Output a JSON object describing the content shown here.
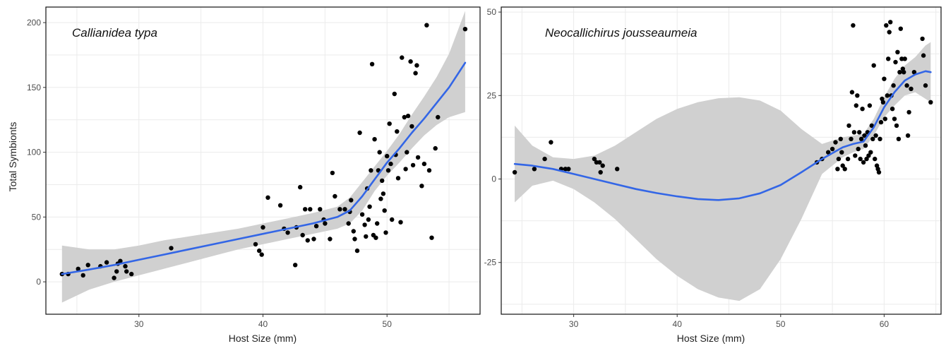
{
  "colors": {
    "points": "#000000",
    "smooth_line": "#3366e6",
    "ci_band": "#d0d0d0"
  },
  "y_axis_title": "Total Symbionts",
  "chart_data": [
    {
      "type": "scatter",
      "title": "Callianidea typa",
      "xlabel": "Host Size (mm)",
      "ylabel": "Total Symbionts",
      "xlim": [
        22.5,
        57.5
      ],
      "ylim": [
        -25,
        212
      ],
      "x_ticks": [
        30,
        40,
        50
      ],
      "y_ticks": [
        0,
        50,
        100,
        150,
        200
      ],
      "grid": true,
      "points": [
        [
          23.8,
          6
        ],
        [
          24.3,
          6
        ],
        [
          25.1,
          10
        ],
        [
          25.5,
          5
        ],
        [
          25.9,
          13
        ],
        [
          26.9,
          12
        ],
        [
          27.4,
          15
        ],
        [
          28.0,
          3
        ],
        [
          28.2,
          8
        ],
        [
          28.3,
          14
        ],
        [
          28.5,
          16
        ],
        [
          28.9,
          12
        ],
        [
          29.0,
          8
        ],
        [
          29.4,
          6
        ],
        [
          32.6,
          26
        ],
        [
          39.4,
          29
        ],
        [
          39.7,
          24
        ],
        [
          39.9,
          21
        ],
        [
          40.0,
          42
        ],
        [
          40.4,
          65
        ],
        [
          41.4,
          59
        ],
        [
          41.7,
          41
        ],
        [
          42.0,
          38
        ],
        [
          42.6,
          13
        ],
        [
          42.7,
          42
        ],
        [
          43.0,
          73
        ],
        [
          43.2,
          36
        ],
        [
          43.4,
          56
        ],
        [
          43.6,
          32
        ],
        [
          43.8,
          56
        ],
        [
          44.1,
          33
        ],
        [
          44.3,
          43
        ],
        [
          44.6,
          56
        ],
        [
          44.9,
          48
        ],
        [
          45.0,
          45
        ],
        [
          45.4,
          33
        ],
        [
          45.6,
          84
        ],
        [
          45.8,
          66
        ],
        [
          46.2,
          56
        ],
        [
          46.6,
          56
        ],
        [
          46.9,
          45
        ],
        [
          47.0,
          54
        ],
        [
          47.1,
          63
        ],
        [
          47.3,
          39
        ],
        [
          47.4,
          33
        ],
        [
          47.6,
          24
        ],
        [
          47.8,
          115
        ],
        [
          48.0,
          52
        ],
        [
          48.2,
          44
        ],
        [
          48.3,
          35
        ],
        [
          48.4,
          72
        ],
        [
          48.5,
          48
        ],
        [
          48.6,
          58
        ],
        [
          48.7,
          86
        ],
        [
          48.8,
          168
        ],
        [
          48.9,
          36
        ],
        [
          49.0,
          110
        ],
        [
          49.1,
          34
        ],
        [
          49.2,
          45
        ],
        [
          49.3,
          86
        ],
        [
          49.4,
          100
        ],
        [
          49.5,
          64
        ],
        [
          49.6,
          78
        ],
        [
          49.7,
          68
        ],
        [
          49.8,
          55
        ],
        [
          49.9,
          38
        ],
        [
          50.0,
          97
        ],
        [
          50.1,
          86
        ],
        [
          50.2,
          122
        ],
        [
          50.3,
          91
        ],
        [
          50.4,
          48
        ],
        [
          50.6,
          145
        ],
        [
          50.7,
          98
        ],
        [
          50.8,
          116
        ],
        [
          50.9,
          80
        ],
        [
          51.1,
          46
        ],
        [
          51.2,
          173
        ],
        [
          51.4,
          127
        ],
        [
          51.5,
          87
        ],
        [
          51.6,
          100
        ],
        [
          51.7,
          128
        ],
        [
          51.9,
          170
        ],
        [
          52.0,
          120
        ],
        [
          52.1,
          90
        ],
        [
          52.3,
          161
        ],
        [
          52.4,
          167
        ],
        [
          52.5,
          96
        ],
        [
          52.8,
          74
        ],
        [
          53.0,
          91
        ],
        [
          53.2,
          198
        ],
        [
          53.4,
          86
        ],
        [
          53.6,
          34
        ],
        [
          53.9,
          103
        ],
        [
          54.1,
          127
        ],
        [
          56.3,
          195
        ]
      ],
      "smooth": {
        "x": [
          23.8,
          26,
          28,
          30,
          32,
          34,
          36,
          38,
          40,
          42,
          44,
          46,
          47,
          48,
          49,
          50,
          51,
          52,
          53,
          54,
          55,
          56.3
        ],
        "y": [
          6,
          9.5,
          13,
          17,
          21,
          25,
          29,
          33,
          37,
          41,
          45,
          50,
          55,
          66,
          79,
          92,
          103,
          115,
          126,
          138,
          150,
          169
        ],
        "lower": [
          -16,
          -6,
          0,
          5,
          10,
          15,
          20,
          25,
          29,
          33,
          37,
          41,
          45,
          55,
          70,
          82,
          92,
          103,
          113,
          121,
          127,
          131
        ],
        "upper": [
          28,
          25,
          25,
          28,
          32,
          35,
          38,
          41,
          45,
          49,
          53,
          58,
          65,
          77,
          89,
          101,
          114,
          129,
          143,
          158,
          176,
          209
        ]
      }
    },
    {
      "type": "scatter",
      "title": "Neocallichirus jousseaumeia",
      "xlabel": "Host Size (mm)",
      "ylabel": "",
      "xlim": [
        23,
        65.5
      ],
      "ylim": [
        -40.5,
        51.5
      ],
      "x_ticks": [
        30,
        40,
        50,
        60
      ],
      "y_ticks": [
        -25,
        0,
        25,
        50
      ],
      "grid": true,
      "points": [
        [
          24.3,
          2
        ],
        [
          26.2,
          3
        ],
        [
          27.2,
          6
        ],
        [
          27.8,
          11
        ],
        [
          28.8,
          3
        ],
        [
          29.2,
          3
        ],
        [
          29.5,
          3
        ],
        [
          32.0,
          6
        ],
        [
          32.2,
          5
        ],
        [
          32.5,
          5
        ],
        [
          32.6,
          2
        ],
        [
          32.8,
          4
        ],
        [
          34.2,
          3
        ],
        [
          53.5,
          5
        ],
        [
          54.0,
          6
        ],
        [
          54.6,
          8
        ],
        [
          55.0,
          9
        ],
        [
          55.3,
          11
        ],
        [
          55.5,
          3
        ],
        [
          55.6,
          6
        ],
        [
          55.8,
          12
        ],
        [
          55.9,
          8
        ],
        [
          56.0,
          4
        ],
        [
          56.2,
          3
        ],
        [
          56.5,
          6
        ],
        [
          56.6,
          16
        ],
        [
          56.8,
          12
        ],
        [
          56.9,
          26
        ],
        [
          57.0,
          46
        ],
        [
          57.1,
          14
        ],
        [
          57.2,
          7
        ],
        [
          57.3,
          22
        ],
        [
          57.4,
          25
        ],
        [
          57.5,
          9
        ],
        [
          57.6,
          14
        ],
        [
          57.7,
          6
        ],
        [
          57.8,
          12
        ],
        [
          57.9,
          21
        ],
        [
          58.0,
          5
        ],
        [
          58.1,
          13
        ],
        [
          58.2,
          10
        ],
        [
          58.3,
          6
        ],
        [
          58.4,
          14
        ],
        [
          58.5,
          7
        ],
        [
          58.6,
          22
        ],
        [
          58.7,
          8
        ],
        [
          58.8,
          16
        ],
        [
          58.9,
          12
        ],
        [
          59.0,
          34
        ],
        [
          59.1,
          6
        ],
        [
          59.2,
          13
        ],
        [
          59.3,
          4
        ],
        [
          59.4,
          3
        ],
        [
          59.5,
          2
        ],
        [
          59.6,
          12
        ],
        [
          59.7,
          17
        ],
        [
          59.8,
          24
        ],
        [
          59.9,
          23
        ],
        [
          60.0,
          30
        ],
        [
          60.1,
          18
        ],
        [
          60.2,
          46
        ],
        [
          60.3,
          25
        ],
        [
          60.4,
          36
        ],
        [
          60.5,
          44
        ],
        [
          60.6,
          47
        ],
        [
          60.7,
          25
        ],
        [
          60.8,
          21
        ],
        [
          60.9,
          28
        ],
        [
          61.0,
          18
        ],
        [
          61.1,
          35
        ],
        [
          61.2,
          16
        ],
        [
          61.3,
          38
        ],
        [
          61.4,
          12
        ],
        [
          61.5,
          32
        ],
        [
          61.6,
          45
        ],
        [
          61.7,
          36
        ],
        [
          61.8,
          33
        ],
        [
          61.9,
          32
        ],
        [
          62.0,
          36
        ],
        [
          62.2,
          28
        ],
        [
          62.3,
          13
        ],
        [
          62.4,
          20
        ],
        [
          62.6,
          27
        ],
        [
          62.9,
          32
        ],
        [
          63.7,
          42
        ],
        [
          63.8,
          37
        ],
        [
          64.0,
          28
        ],
        [
          64.5,
          23
        ]
      ],
      "smooth": {
        "x": [
          24.3,
          26,
          28,
          30,
          32,
          34,
          36,
          38,
          40,
          42,
          44,
          46,
          48,
          50,
          52,
          54,
          56,
          57,
          58,
          59,
          60,
          61,
          62,
          63,
          64,
          64.5
        ],
        "y": [
          4.5,
          4,
          3,
          1.5,
          0,
          -1.5,
          -3,
          -4.2,
          -5.2,
          -6,
          -6.3,
          -5.8,
          -4.3,
          -1.8,
          2,
          6,
          9.5,
          10.5,
          11.2,
          15.5,
          21.5,
          26,
          29.5,
          31.3,
          32.3,
          32
        ],
        "lower": [
          -7,
          -2,
          -0.5,
          -3,
          -7,
          -12,
          -18,
          -24,
          -29,
          -33,
          -35.5,
          -36.5,
          -33,
          -24,
          -12,
          1.5,
          6.5,
          8,
          9,
          13,
          18.5,
          22,
          25,
          26,
          24,
          23
        ],
        "upper": [
          16,
          10,
          6.5,
          6,
          7,
          10,
          14,
          18,
          21,
          23,
          24.2,
          24.5,
          23.5,
          20.5,
          15,
          10.5,
          12.5,
          13,
          13.5,
          18,
          24.5,
          30,
          34,
          36.5,
          40,
          41
        ]
      }
    }
  ]
}
